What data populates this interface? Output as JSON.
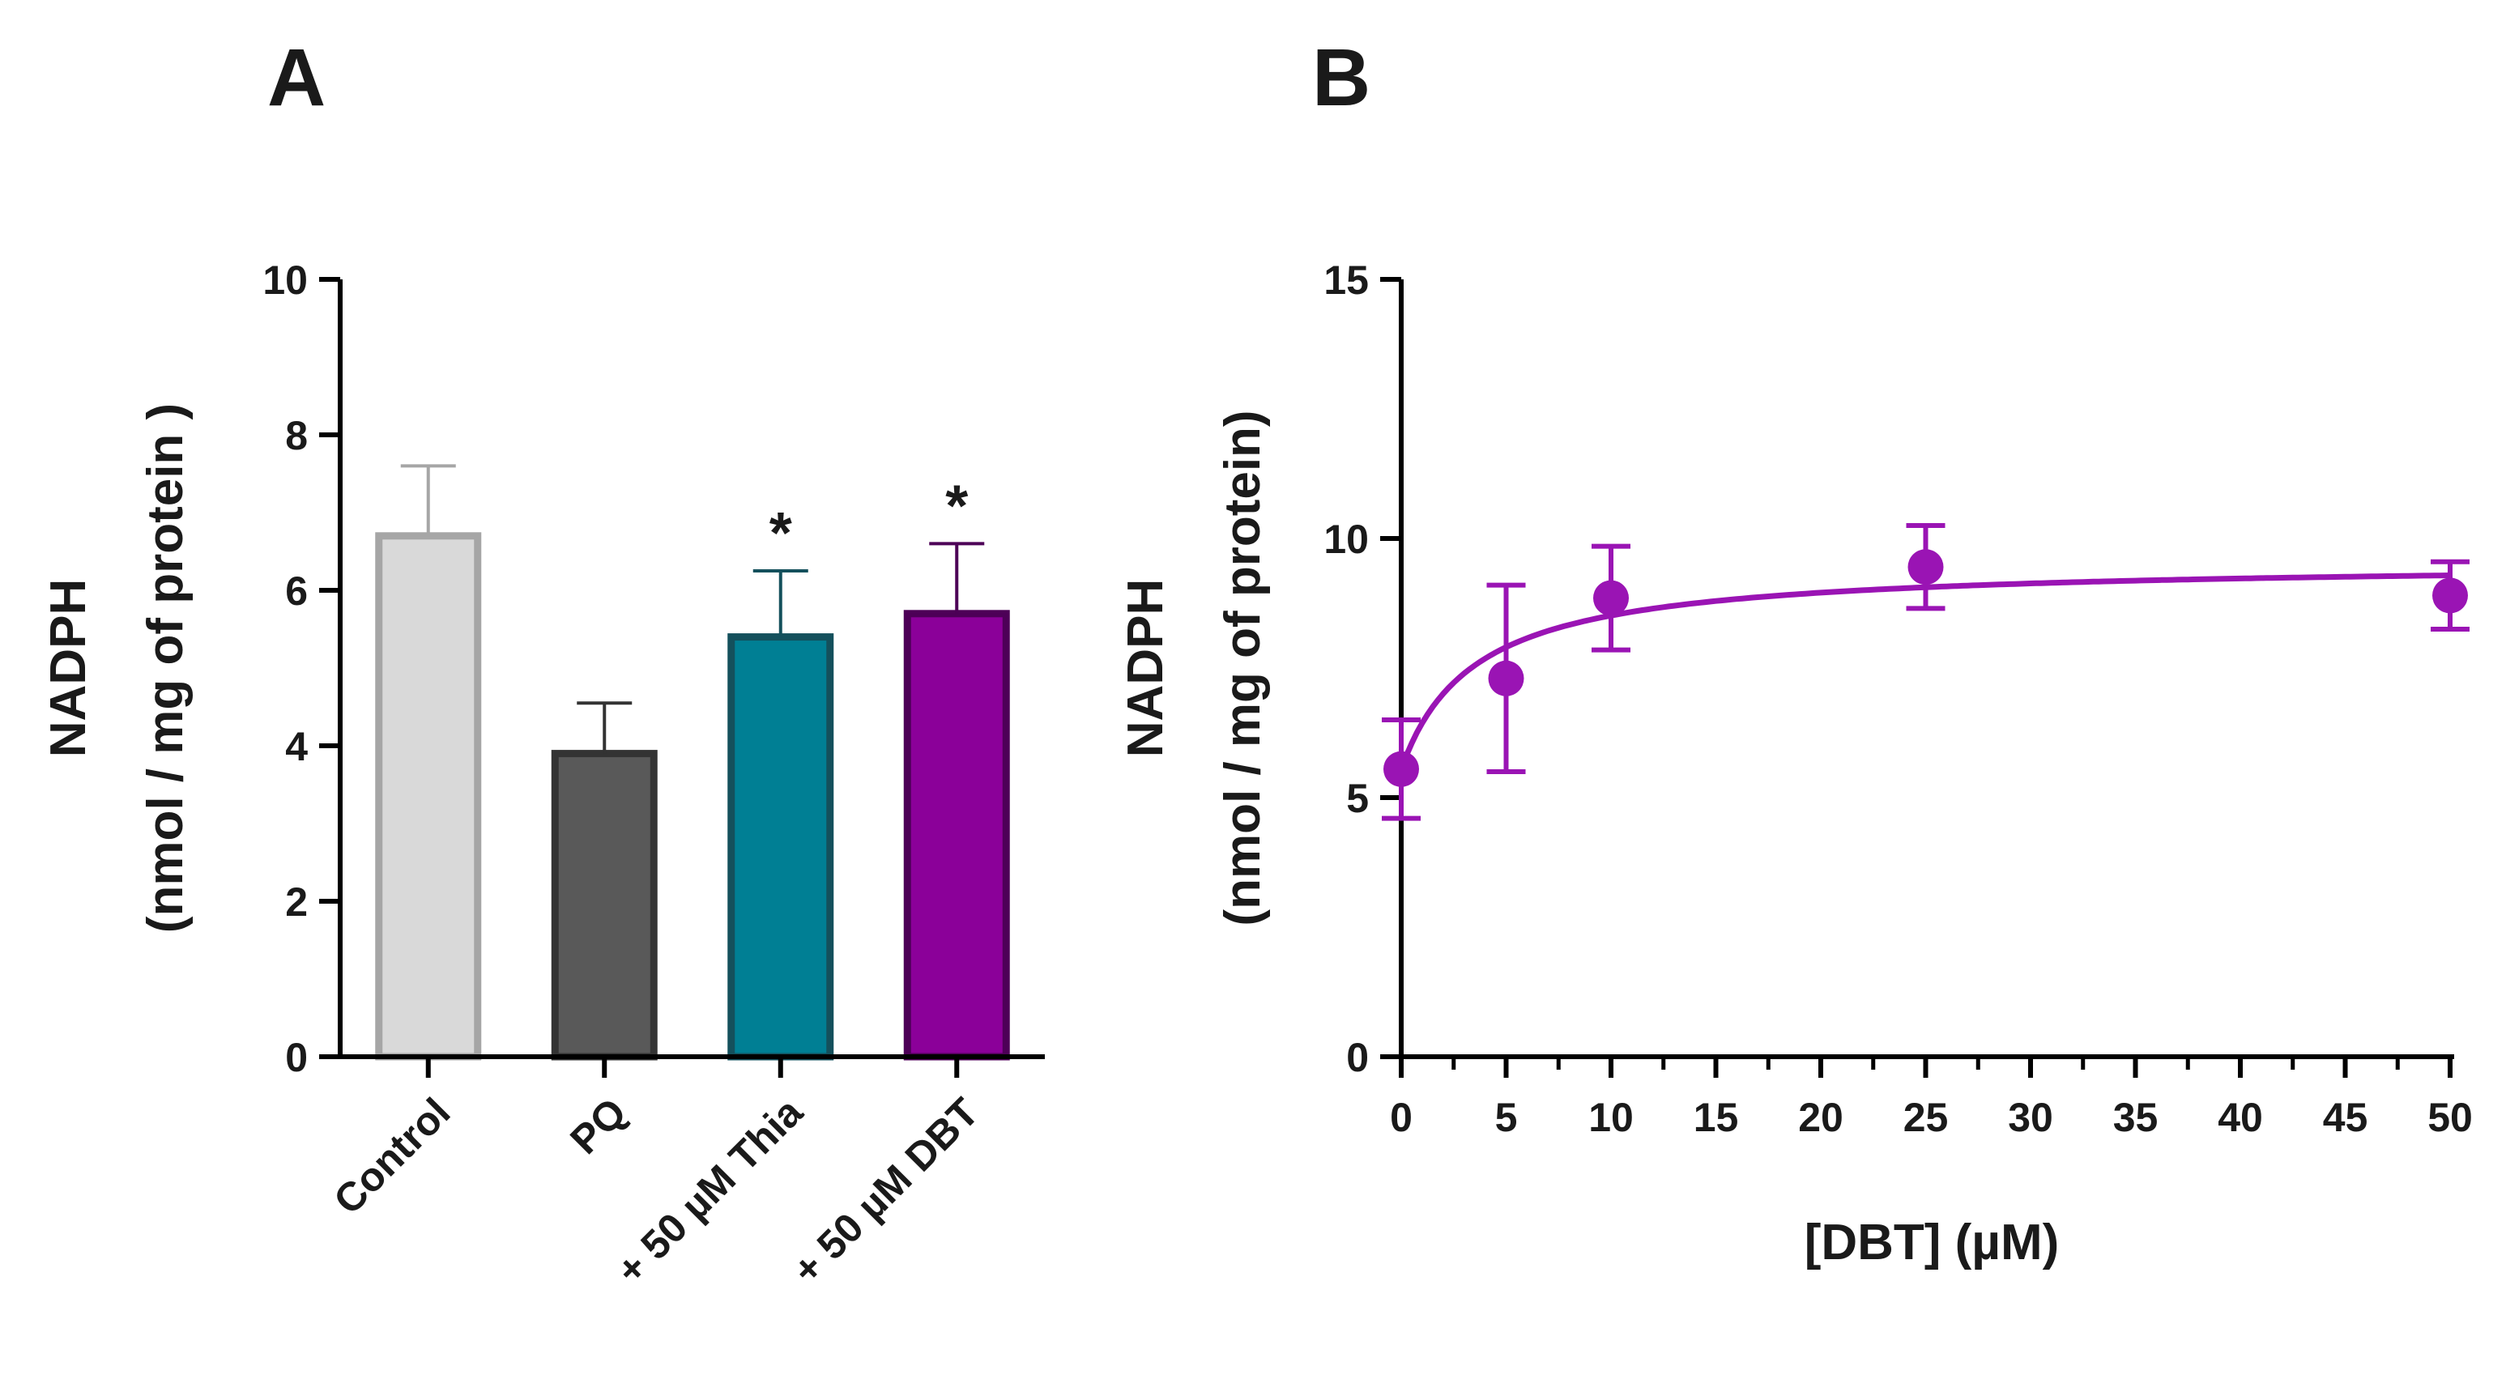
{
  "figure": {
    "panel_a_letter": "A",
    "panel_b_letter": "B"
  },
  "chart_data": [
    {
      "type": "bar",
      "panel": "A",
      "ylabel_line1": "NADPH",
      "ylabel_line2": "(nmol / mg of protein )",
      "ylim": [
        0,
        10
      ],
      "yticks": [
        0,
        2,
        4,
        6,
        8,
        10
      ],
      "ytick_labels": [
        "0",
        "2",
        "4",
        "6",
        "8",
        "10"
      ],
      "categories": [
        "Control",
        "PQ",
        "+ 50 µM Thia",
        "+ 50 µM DBT"
      ],
      "values": [
        6.7,
        3.9,
        5.4,
        5.7
      ],
      "errors": [
        0.9,
        0.65,
        0.85,
        0.9
      ],
      "significance": [
        "",
        "",
        "*",
        "*"
      ],
      "fill_colors": [
        "#d9d9d9",
        "#595959",
        "#007f94",
        "#8b0099"
      ],
      "edge_colors": [
        "#a6a6a6",
        "#333333",
        "#14505c",
        "#4d0057"
      ]
    },
    {
      "type": "scatter",
      "panel": "B",
      "ylabel_line1": "NADPH",
      "ylabel_line2": "(nmol / mg of protein)",
      "xlabel": "[DBT] (µM)",
      "xlim": [
        0,
        50
      ],
      "ylim": [
        0,
        15
      ],
      "xticks": [
        0,
        5,
        10,
        15,
        20,
        25,
        30,
        35,
        40,
        45,
        50
      ],
      "xtick_labels": [
        "0",
        "5",
        "10",
        "15",
        "20",
        "25",
        "30",
        "35",
        "40",
        "45",
        "50"
      ],
      "yticks": [
        0,
        5,
        10,
        15
      ],
      "ytick_labels": [
        "0",
        "5",
        "10",
        "15"
      ],
      "x": [
        0,
        5,
        10,
        25,
        50
      ],
      "y": [
        5.55,
        7.3,
        8.85,
        9.45,
        8.9
      ],
      "errors": [
        0.95,
        1.8,
        1.0,
        0.8,
        0.65
      ],
      "fit": {
        "model": "hyperbolic",
        "y0": 5.55,
        "ymax_increase": 4.0,
        "k": 3.5
      },
      "color": "#9a14b4"
    }
  ]
}
